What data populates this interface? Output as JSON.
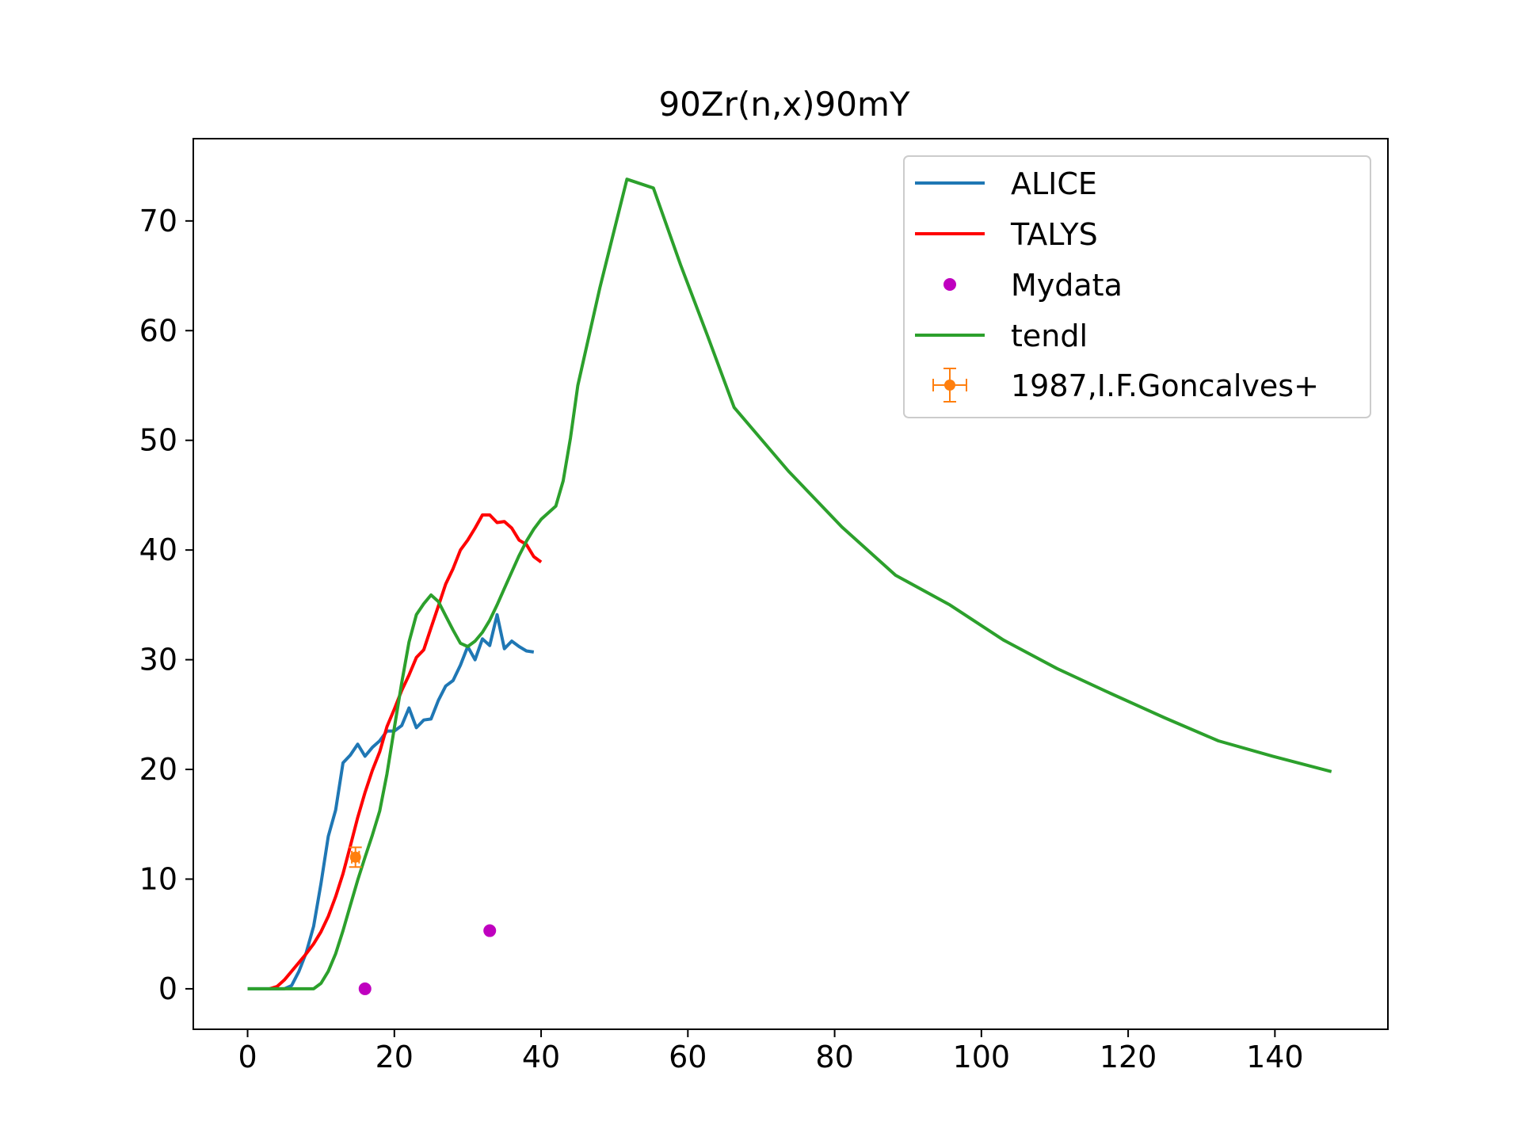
{
  "chart_data": {
    "type": "line",
    "title": "90Zr(n,x)90mY",
    "xlabel": "",
    "ylabel": "",
    "xlim": [
      -7.4,
      155.4
    ],
    "ylim": [
      -3.69,
      77.5
    ],
    "xticks": [
      0,
      20,
      40,
      60,
      80,
      100,
      120,
      140
    ],
    "yticks": [
      0,
      10,
      20,
      30,
      40,
      50,
      60,
      70
    ],
    "grid": false,
    "legend_position": "top-right",
    "series": [
      {
        "name": "ALICE",
        "kind": "line",
        "color": "#1f77b4",
        "x": [
          0,
          2,
          4,
          5,
          6,
          7,
          8,
          9,
          10,
          11,
          12,
          13,
          14,
          15,
          16,
          17,
          18,
          19,
          20,
          21,
          22,
          23,
          24,
          25,
          26,
          27,
          28,
          29,
          30,
          31,
          32,
          33,
          34,
          35,
          36,
          37,
          38,
          39
        ],
        "y": [
          0,
          0,
          0,
          0,
          0.3,
          1.6,
          3.3,
          5.7,
          9.6,
          13.9,
          16.3,
          20.6,
          21.3,
          22.3,
          21.2,
          22.0,
          22.6,
          23.5,
          23.5,
          24.0,
          25.6,
          23.8,
          24.5,
          24.6,
          26.3,
          27.6,
          28.1,
          29.5,
          31.2,
          30.0,
          31.9,
          31.3,
          34.1,
          31.0,
          31.7,
          31.2,
          30.8,
          30.7
        ]
      },
      {
        "name": "TALYS",
        "kind": "line",
        "color": "#ff0000",
        "x": [
          3,
          4,
          5,
          6,
          7,
          8,
          9,
          10,
          11,
          12,
          13,
          14,
          15,
          16,
          17,
          18,
          19,
          20,
          21,
          22,
          23,
          24,
          25,
          26,
          27,
          28,
          29,
          30,
          31,
          32,
          33,
          34,
          35,
          36,
          37,
          38,
          39,
          40
        ],
        "y": [
          0,
          0.2,
          0.8,
          1.6,
          2.4,
          3.2,
          4.1,
          5.2,
          6.6,
          8.4,
          10.5,
          13.0,
          15.6,
          17.9,
          19.9,
          21.6,
          23.9,
          25.5,
          27.2,
          28.6,
          30.2,
          30.9,
          32.9,
          34.9,
          36.9,
          38.3,
          40.0,
          40.9,
          42.0,
          43.2,
          43.2,
          42.5,
          42.6,
          42.0,
          40.9,
          40.5,
          39.4,
          38.9
        ]
      },
      {
        "name": "Mydata",
        "kind": "markers",
        "color": "#bf00bf",
        "x": [
          16,
          33
        ],
        "y": [
          0.0,
          5.3
        ]
      },
      {
        "name": "tendl",
        "kind": "line",
        "color": "#2ca02c",
        "x": [
          0,
          4,
          8,
          9,
          10,
          11,
          12,
          13,
          14,
          15,
          16,
          17,
          18,
          19,
          20,
          21,
          22,
          23,
          24,
          25,
          26,
          27,
          28,
          29,
          30,
          31,
          32,
          33,
          34,
          35,
          36,
          37,
          38,
          39,
          40,
          42,
          43,
          44,
          45,
          48,
          51.7,
          55.3,
          59,
          62.7,
          66.3,
          73.7,
          81,
          88.3,
          95.7,
          103,
          110.3,
          117.7,
          125,
          132.3,
          139.7,
          147.7
        ],
        "y": [
          0,
          0,
          0,
          0,
          0.5,
          1.6,
          3.2,
          5.3,
          7.6,
          9.9,
          12.0,
          14.0,
          16.2,
          19.6,
          23.8,
          27.9,
          31.6,
          34.1,
          35.1,
          35.9,
          35.3,
          34.0,
          32.7,
          31.5,
          31.2,
          31.7,
          32.5,
          33.6,
          35.0,
          36.5,
          38.0,
          39.5,
          40.8,
          41.9,
          42.8,
          44.0,
          46.3,
          50.2,
          55.0,
          63.9,
          73.8,
          73.0,
          66.0,
          59.5,
          53.0,
          47.2,
          42.1,
          37.7,
          35.0,
          31.8,
          29.2,
          26.9,
          24.7,
          22.6,
          21.2,
          19.8
        ]
      },
      {
        "name": "1987,I.F.Goncalves+",
        "kind": "errorbar",
        "color": "#ff7f0e",
        "x": [
          14.7
        ],
        "y": [
          12.0
        ],
        "xerr": [
          0.5
        ],
        "yerr": [
          0.9
        ]
      }
    ]
  }
}
